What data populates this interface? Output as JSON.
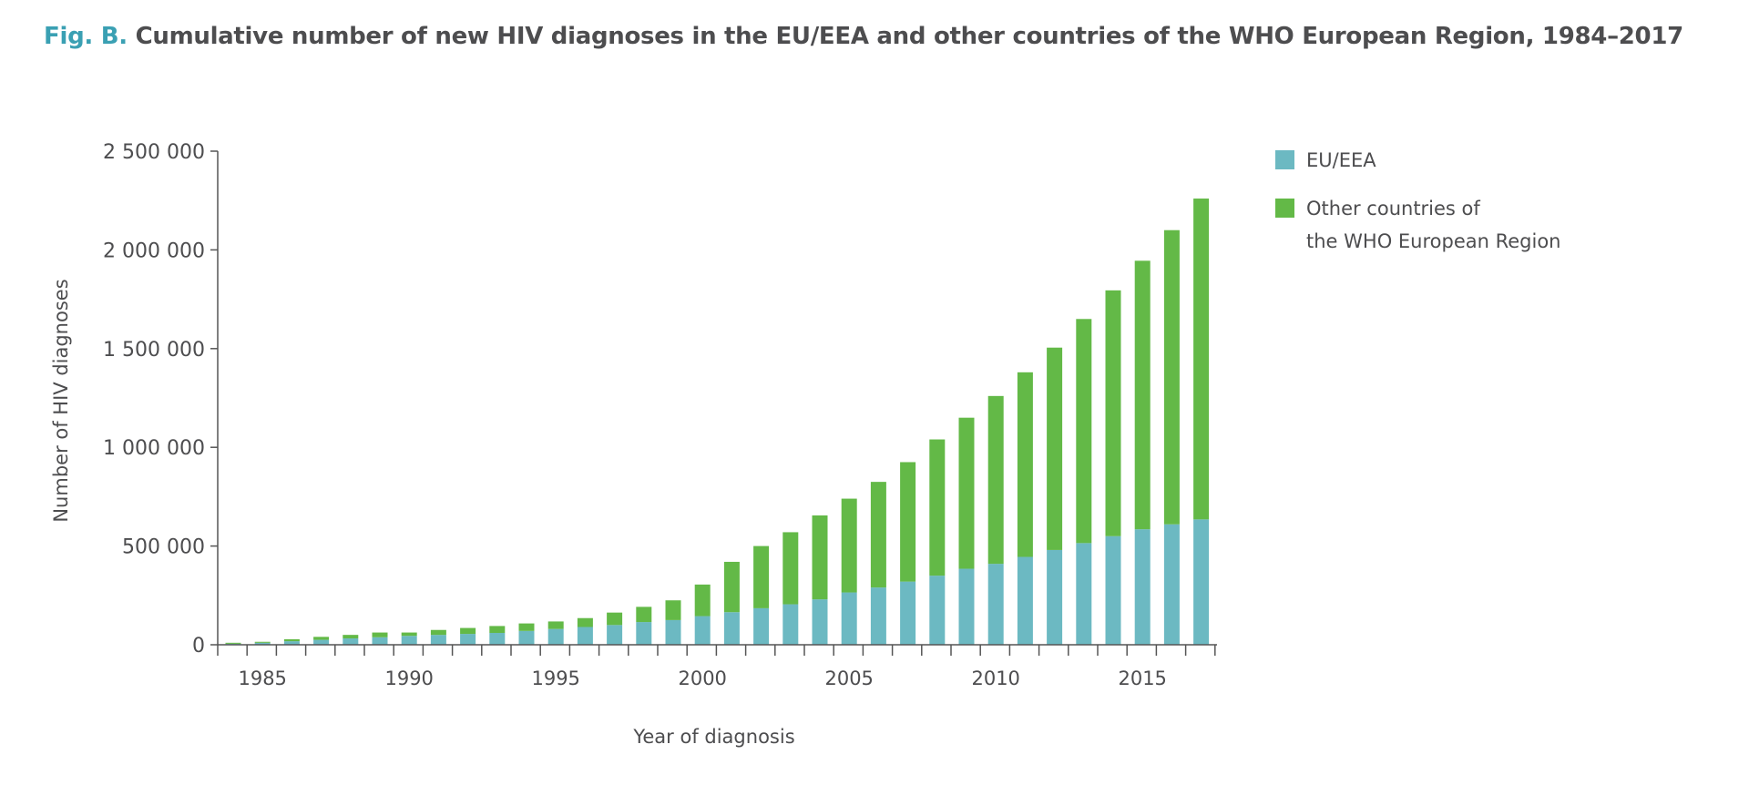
{
  "title": {
    "figure_label": "Fig. B.",
    "text": "Cumulative number of new HIV diagnoses in the EU/EEA and other countries of the WHO European Region, 1984–2017"
  },
  "colors": {
    "eu_eea": "#6cb9c2",
    "other": "#63b947",
    "title_accent": "#3aa0b3",
    "axis": "#555555"
  },
  "chart_data": {
    "type": "bar",
    "stacked": true,
    "title": "Cumulative number of new HIV diagnoses in the EU/EEA and other countries of the WHO European Region, 1984–2017",
    "xlabel": "Year of diagnosis",
    "ylabel": "Number of HIV diagnoses",
    "ylim": [
      0,
      2500000
    ],
    "yticks": [
      0,
      500000,
      1000000,
      1500000,
      2000000,
      2500000
    ],
    "ytick_labels": [
      "0",
      "500 000",
      "1 000 000",
      "1 500 000",
      "2 000 000",
      "2 500 000"
    ],
    "xtick_labels": [
      "1985",
      "1990",
      "1995",
      "2000",
      "2005",
      "2010",
      "2015"
    ],
    "grid": false,
    "legend_position": "top-right",
    "categories": [
      1984,
      1985,
      1986,
      1987,
      1988,
      1989,
      1990,
      1991,
      1992,
      1993,
      1994,
      1995,
      1996,
      1997,
      1998,
      1999,
      2000,
      2001,
      2002,
      2003,
      2004,
      2005,
      2006,
      2007,
      2008,
      2009,
      2010,
      2011,
      2012,
      2013,
      2014,
      2015,
      2016,
      2017
    ],
    "series": [
      {
        "name": "EU/EEA",
        "values": [
          5000,
          10000,
          18000,
          25000,
          32000,
          38000,
          45000,
          50000,
          55000,
          60000,
          70000,
          80000,
          90000,
          100000,
          115000,
          125000,
          145000,
          165000,
          185000,
          205000,
          230000,
          265000,
          290000,
          320000,
          350000,
          385000,
          410000,
          445000,
          480000,
          515000,
          550000,
          585000,
          610000,
          635000
        ]
      },
      {
        "name": "Other countries of the WHO European Region",
        "values": [
          5000,
          5000,
          10000,
          15000,
          18000,
          24000,
          17000,
          25000,
          30000,
          35000,
          38000,
          38000,
          45000,
          63000,
          77000,
          100000,
          160000,
          255000,
          315000,
          365000,
          425000,
          475000,
          535000,
          605000,
          690000,
          765000,
          850000,
          935000,
          1025000,
          1135000,
          1245000,
          1360000,
          1490000,
          1625000
        ]
      }
    ]
  },
  "legend": {
    "items": [
      {
        "line1": "EU/EEA",
        "line2": ""
      },
      {
        "line1": "Other countries of",
        "line2": "the WHO European Region"
      }
    ]
  }
}
